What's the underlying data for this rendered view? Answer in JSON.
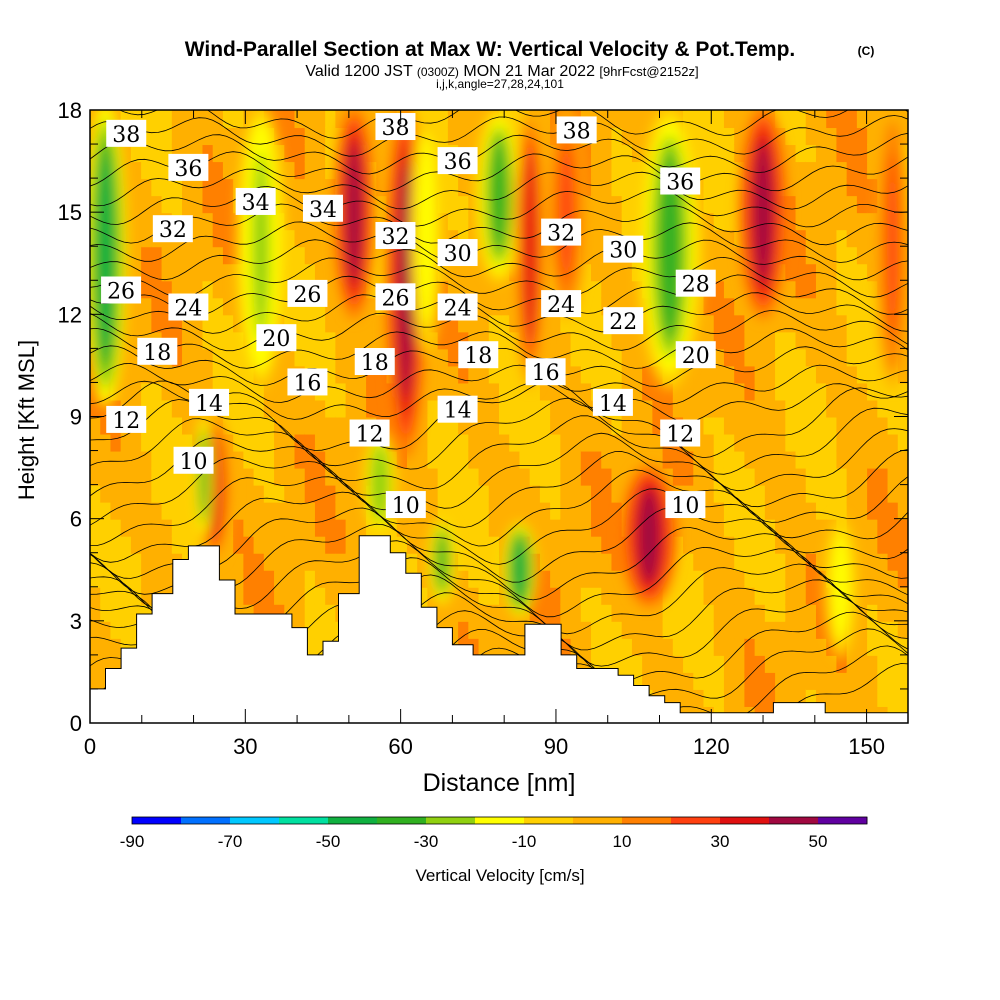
{
  "header": {
    "title": "Wind-Parallel Section at Max W: Vertical Velocity & Pot.Temp.",
    "copyright": "(C)",
    "valid_prefix": "Valid 1200 JST",
    "valid_utc": "(0300Z)",
    "valid_date": "MON 21 Mar 2022",
    "forecast": "[9hrFcst@2152z]",
    "indices": "i,j,k,angle=27,28,24,101"
  },
  "chart_data": {
    "type": "heatmap",
    "xlabel": "Distance [nm]",
    "ylabel": "Height [Kft MSL]",
    "xlim": [
      0,
      158
    ],
    "ylim": [
      0,
      18
    ],
    "x_ticks": [
      0,
      30,
      60,
      90,
      120,
      150
    ],
    "y_ticks": [
      0,
      3,
      6,
      9,
      12,
      15,
      18
    ],
    "colorbar": {
      "label": "Vertical Velocity [cm/s]",
      "levels": [
        -90,
        -80,
        -70,
        -60,
        -50,
        -40,
        -30,
        -20,
        -10,
        0,
        10,
        20,
        30,
        40,
        50,
        60
      ],
      "tick_labels": [
        -90,
        -70,
        -50,
        -30,
        -10,
        10,
        30,
        50
      ],
      "colors": [
        "#0000ff",
        "#0070ff",
        "#00c8ff",
        "#00e0a0",
        "#10b040",
        "#30b020",
        "#90d010",
        "#ffff00",
        "#ffd000",
        "#ffb000",
        "#ff8000",
        "#ff4010",
        "#e01010",
        "#a00840",
        "#6000a0"
      ]
    },
    "terrain": [
      [
        0,
        1.0
      ],
      [
        3,
        1.0
      ],
      [
        3,
        1.6
      ],
      [
        6,
        1.6
      ],
      [
        6,
        2.2
      ],
      [
        9,
        2.2
      ],
      [
        9,
        3.2
      ],
      [
        12,
        3.2
      ],
      [
        12,
        3.8
      ],
      [
        16,
        3.8
      ],
      [
        16,
        4.8
      ],
      [
        19,
        4.8
      ],
      [
        19,
        5.2
      ],
      [
        25,
        5.2
      ],
      [
        25,
        4.2
      ],
      [
        28,
        4.2
      ],
      [
        28,
        3.2
      ],
      [
        39,
        3.2
      ],
      [
        39,
        2.8
      ],
      [
        42,
        2.8
      ],
      [
        42,
        2.0
      ],
      [
        45,
        2.0
      ],
      [
        45,
        2.4
      ],
      [
        48,
        2.4
      ],
      [
        48,
        3.8
      ],
      [
        52,
        3.8
      ],
      [
        52,
        5.5
      ],
      [
        58,
        5.5
      ],
      [
        58,
        5.0
      ],
      [
        61,
        5.0
      ],
      [
        61,
        4.4
      ],
      [
        64,
        4.4
      ],
      [
        64,
        3.4
      ],
      [
        67,
        3.4
      ],
      [
        67,
        2.8
      ],
      [
        70,
        2.8
      ],
      [
        70,
        2.3
      ],
      [
        74,
        2.3
      ],
      [
        74,
        2.0
      ],
      [
        80,
        2.0
      ],
      [
        80,
        2.0
      ],
      [
        84,
        2.0
      ],
      [
        84,
        2.9
      ],
      [
        91,
        2.9
      ],
      [
        91,
        2.0
      ],
      [
        94,
        2.0
      ],
      [
        94,
        1.6
      ],
      [
        102,
        1.6
      ],
      [
        102,
        1.4
      ],
      [
        105,
        1.4
      ],
      [
        105,
        1.1
      ],
      [
        108,
        1.1
      ],
      [
        108,
        0.8
      ],
      [
        111,
        0.8
      ],
      [
        111,
        0.6
      ],
      [
        114,
        0.6
      ],
      [
        114,
        0.3
      ],
      [
        118,
        0.3
      ],
      [
        118,
        0.3
      ],
      [
        132,
        0.3
      ],
      [
        132,
        0.6
      ],
      [
        142,
        0.6
      ],
      [
        142,
        0.3
      ],
      [
        158,
        0.3
      ]
    ],
    "w_features": [
      {
        "x": 3,
        "z0": 9.5,
        "z1": 18,
        "w": -45,
        "width": 2.5
      },
      {
        "x": 24,
        "z0": 4.8,
        "z1": 9,
        "w": 35,
        "width": 2.2
      },
      {
        "x": 22,
        "z0": 5.5,
        "z1": 9,
        "w": -35,
        "width": 1.2
      },
      {
        "x": 33,
        "z0": 10,
        "z1": 18,
        "w": -25,
        "width": 3
      },
      {
        "x": 51,
        "z0": 12,
        "z1": 18,
        "w": 40,
        "width": 2.5
      },
      {
        "x": 56,
        "z0": 5.6,
        "z1": 8.5,
        "w": -30,
        "width": 2
      },
      {
        "x": 61,
        "z0": 8,
        "z1": 18,
        "w": 45,
        "width": 2.5
      },
      {
        "x": 65,
        "z0": 11,
        "z1": 18,
        "w": -15,
        "width": 2
      },
      {
        "x": 68,
        "z0": 3.5,
        "z1": 6,
        "w": -40,
        "width": 1.8
      },
      {
        "x": 79,
        "z0": 13,
        "z1": 18,
        "w": -40,
        "width": 3
      },
      {
        "x": 83,
        "z0": 3.2,
        "z1": 5.8,
        "w": -45,
        "width": 2
      },
      {
        "x": 85,
        "z0": 10,
        "z1": 18,
        "w": 30,
        "width": 2
      },
      {
        "x": 92,
        "z0": 12,
        "z1": 18,
        "w": 20,
        "width": 2.5
      },
      {
        "x": 108,
        "z0": 3.5,
        "z1": 7.5,
        "w": 45,
        "width": 3.5
      },
      {
        "x": 112,
        "z0": 10,
        "z1": 18,
        "w": -40,
        "width": 4
      },
      {
        "x": 130,
        "z0": 12,
        "z1": 18,
        "w": 45,
        "width": 3
      },
      {
        "x": 145,
        "z0": 2,
        "z1": 6,
        "w": -15,
        "width": 2
      },
      {
        "x": 155,
        "z0": 10,
        "z1": 18,
        "w": 25,
        "width": 2
      }
    ],
    "theta_labels": [
      {
        "text": "38",
        "x": 7,
        "z": 17.3
      },
      {
        "text": "36",
        "x": 19,
        "z": 16.3
      },
      {
        "text": "34",
        "x": 32,
        "z": 15.3
      },
      {
        "text": "34",
        "x": 45,
        "z": 15.1
      },
      {
        "text": "32",
        "x": 16,
        "z": 14.5
      },
      {
        "text": "26",
        "x": 6,
        "z": 12.7
      },
      {
        "text": "24",
        "x": 19,
        "z": 12.2
      },
      {
        "text": "26",
        "x": 42,
        "z": 12.6
      },
      {
        "text": "18",
        "x": 13,
        "z": 10.9
      },
      {
        "text": "20",
        "x": 36,
        "z": 11.3
      },
      {
        "text": "16",
        "x": 42,
        "z": 10.0
      },
      {
        "text": "14",
        "x": 23,
        "z": 9.4
      },
      {
        "text": "12",
        "x": 7,
        "z": 8.9
      },
      {
        "text": "10",
        "x": 20,
        "z": 7.7
      },
      {
        "text": "38",
        "x": 59,
        "z": 17.5
      },
      {
        "text": "36",
        "x": 71,
        "z": 16.5
      },
      {
        "text": "32",
        "x": 59,
        "z": 14.3
      },
      {
        "text": "30",
        "x": 71,
        "z": 13.8
      },
      {
        "text": "26",
        "x": 59,
        "z": 12.5
      },
      {
        "text": "24",
        "x": 71,
        "z": 12.2
      },
      {
        "text": "18",
        "x": 55,
        "z": 10.6
      },
      {
        "text": "18",
        "x": 75,
        "z": 10.8
      },
      {
        "text": "14",
        "x": 71,
        "z": 9.2
      },
      {
        "text": "12",
        "x": 54,
        "z": 8.5
      },
      {
        "text": "10",
        "x": 61,
        "z": 6.4
      },
      {
        "text": "38",
        "x": 94,
        "z": 17.4
      },
      {
        "text": "32",
        "x": 91,
        "z": 14.4
      },
      {
        "text": "30",
        "x": 103,
        "z": 13.9
      },
      {
        "text": "36",
        "x": 114,
        "z": 15.9
      },
      {
        "text": "28",
        "x": 117,
        "z": 12.9
      },
      {
        "text": "24",
        "x": 91,
        "z": 12.3
      },
      {
        "text": "22",
        "x": 103,
        "z": 11.8
      },
      {
        "text": "20",
        "x": 117,
        "z": 10.8
      },
      {
        "text": "16",
        "x": 88,
        "z": 10.3
      },
      {
        "text": "14",
        "x": 101,
        "z": 9.4
      },
      {
        "text": "12",
        "x": 114,
        "z": 8.5
      },
      {
        "text": "10",
        "x": 115,
        "z": 6.4
      }
    ]
  }
}
